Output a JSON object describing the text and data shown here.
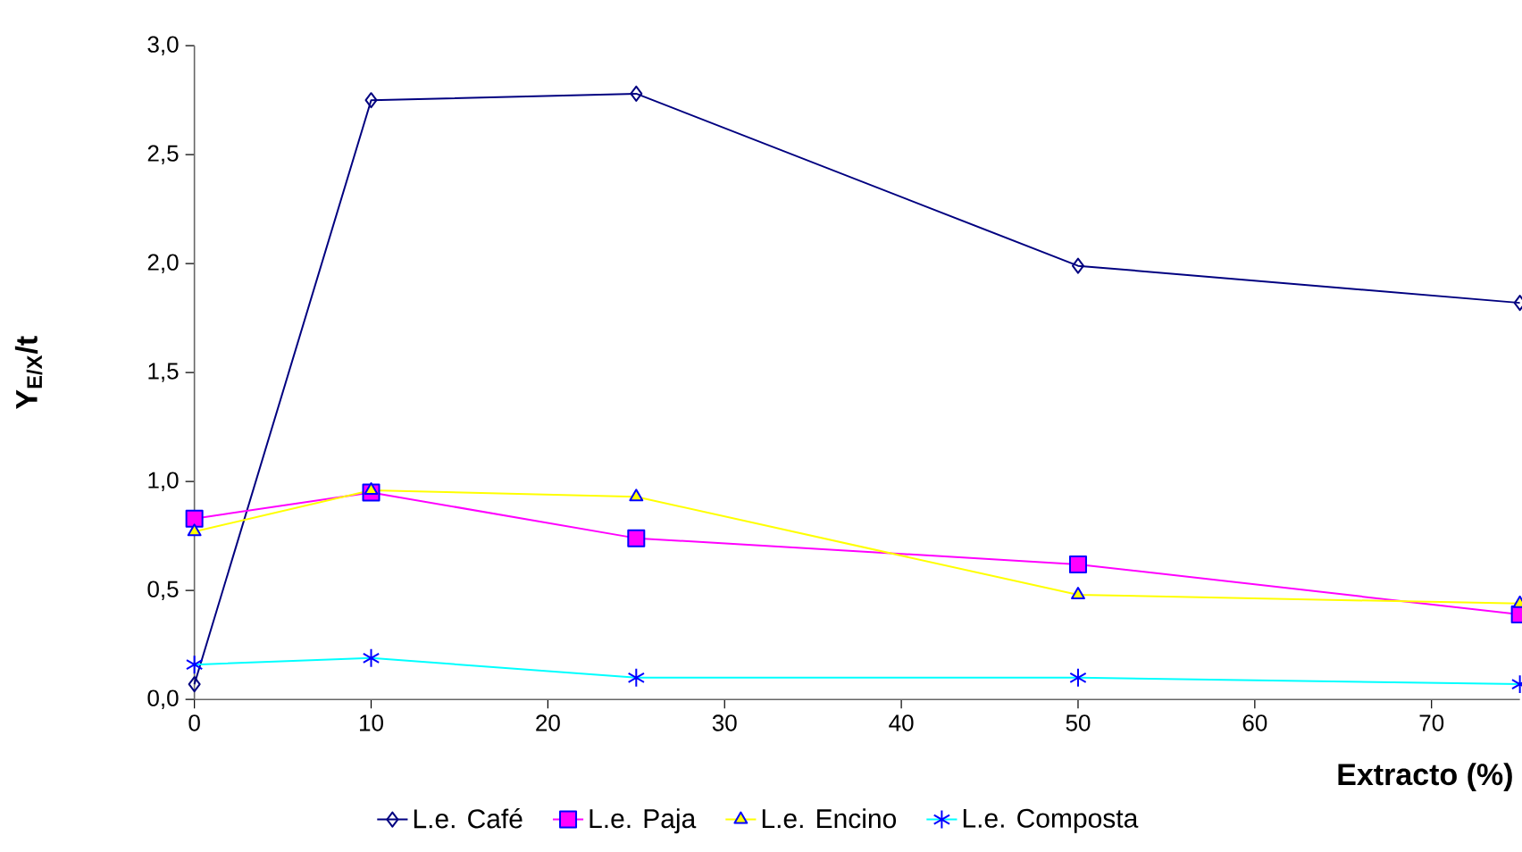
{
  "chart_data": {
    "type": "line",
    "xlabel": "Extracto (%)",
    "ylabel": "Y$_{E/X}$/t",
    "x": [
      0,
      10,
      25,
      50,
      75
    ],
    "series": [
      {
        "name": "L.e. Café",
        "color": "#000080",
        "marker": "diamond",
        "values": [
          0.07,
          2.75,
          2.78,
          1.99,
          1.82
        ]
      },
      {
        "name": "L.e. Paja",
        "color": "#ff00ff",
        "marker": "square",
        "values": [
          0.83,
          0.95,
          0.74,
          0.62,
          0.39
        ]
      },
      {
        "name": "L.e. Encino",
        "color": "#ffff00",
        "marker": "triangle",
        "values": [
          0.77,
          0.96,
          0.93,
          0.48,
          0.44
        ]
      },
      {
        "name": "L.e. Composta",
        "color": "#00ffff",
        "marker": "cross",
        "values": [
          0.16,
          0.19,
          0.1,
          0.1,
          0.07
        ]
      }
    ],
    "xlim": [
      0,
      75
    ],
    "xticks": [
      0,
      10,
      20,
      30,
      40,
      50,
      60,
      70
    ],
    "ylim": [
      0,
      3
    ],
    "yticks": [
      {
        "value": 0,
        "label": "0,0"
      },
      {
        "value": 0.5,
        "label": "0,5"
      },
      {
        "value": 1,
        "label": "1,0"
      },
      {
        "value": 1.5,
        "label": "1,5"
      },
      {
        "value": 2,
        "label": "2,0"
      },
      {
        "value": 2.5,
        "label": "2,5"
      },
      {
        "value": 3,
        "label": "3,0"
      }
    ],
    "grid": false,
    "legend": "bottom",
    "line_style": "solid"
  }
}
